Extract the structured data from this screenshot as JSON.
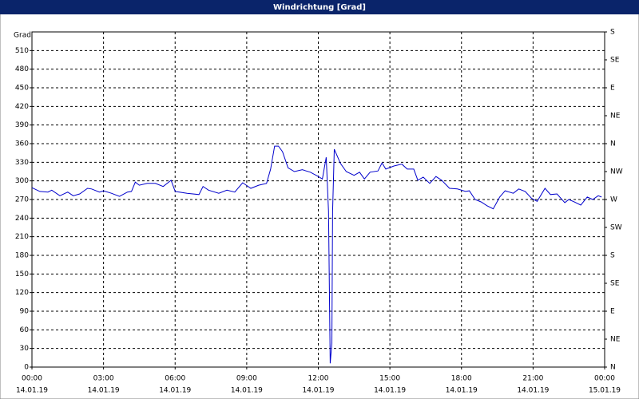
{
  "chart_data": {
    "type": "line",
    "title": "Windrichtung [Grad]",
    "y_label": "Grad",
    "x": [
      0,
      0.33,
      0.67,
      0.83,
      1.17,
      1.5,
      1.73,
      2,
      2.33,
      2.5,
      2.83,
      3,
      3.33,
      3.67,
      4,
      4.17,
      4.33,
      4.5,
      4.83,
      5.17,
      5.5,
      5.83,
      6,
      6.5,
      7,
      7.17,
      7.4,
      7.83,
      8.17,
      8.5,
      8.83,
      9.17,
      9.5,
      9.83,
      10,
      10.17,
      10.33,
      10.5,
      10.73,
      11,
      11.33,
      11.67,
      12,
      12.17,
      12.33,
      12.43,
      12.5,
      12.57,
      12.6,
      12.67,
      12.93,
      13.17,
      13.5,
      13.73,
      13.93,
      14.17,
      14.5,
      14.67,
      14.83,
      15.17,
      15.5,
      15.73,
      16,
      16.17,
      16.4,
      16.67,
      16.93,
      17.17,
      17.5,
      17.83,
      18.17,
      18.33,
      18.57,
      18.83,
      19.07,
      19.33,
      19.6,
      19.83,
      20.17,
      20.4,
      20.67,
      20.93,
      21.17,
      21.5,
      21.73,
      22,
      22.33,
      22.5,
      22.73,
      23,
      23.27,
      23.5,
      23.73,
      23.87
    ],
    "series": [
      {
        "name": "Windrichtung",
        "color": "#0000cc",
        "values": [
          289,
          283,
          282,
          285,
          276,
          282,
          276,
          279,
          288,
          287,
          282,
          284,
          280,
          275,
          282,
          283,
          298,
          293,
          296,
          296,
          291,
          301,
          283,
          280,
          278,
          291,
          285,
          280,
          285,
          282,
          297,
          288,
          293,
          296,
          319,
          356,
          356,
          347,
          321,
          315,
          318,
          314,
          307,
          303,
          338,
          251,
          6,
          39,
          251,
          351,
          328,
          315,
          309,
          314,
          303,
          314,
          316,
          329,
          319,
          324,
          327,
          319,
          319,
          301,
          306,
          296,
          307,
          301,
          288,
          287,
          283,
          284,
          270,
          266,
          260,
          255,
          274,
          284,
          280,
          287,
          283,
          272,
          267,
          288,
          278,
          279,
          265,
          270,
          266,
          261,
          274,
          270,
          276,
          274
        ]
      }
    ],
    "xlim": [
      0,
      24
    ],
    "xticks": [
      {
        "value": 0,
        "label": "00:00"
      },
      {
        "value": 3,
        "label": "03:00"
      },
      {
        "value": 6,
        "label": "06:00"
      },
      {
        "value": 9,
        "label": "09:00"
      },
      {
        "value": 12,
        "label": "12:00"
      },
      {
        "value": 15,
        "label": "15:00"
      },
      {
        "value": 18,
        "label": "18:00"
      },
      {
        "value": 21,
        "label": "21:00"
      },
      {
        "value": 24,
        "label": "00:00"
      }
    ],
    "xtick_dates": [
      "14.01.19",
      "14.01.19",
      "14.01.19",
      "14.01.19",
      "14.01.19",
      "14.01.19",
      "14.01.19",
      "14.01.19",
      "15.01.19"
    ],
    "ylim": [
      0,
      540
    ],
    "yticks": [
      0,
      30,
      60,
      90,
      120,
      150,
      180,
      210,
      240,
      270,
      300,
      330,
      360,
      390,
      420,
      450,
      480,
      510
    ],
    "y2lim": [
      0,
      540
    ],
    "y2ticks": [
      {
        "value": 0,
        "label": "N"
      },
      {
        "value": 45,
        "label": "NE"
      },
      {
        "value": 90,
        "label": "E"
      },
      {
        "value": 135,
        "label": "SE"
      },
      {
        "value": 180,
        "label": "S"
      },
      {
        "value": 225,
        "label": "SW"
      },
      {
        "value": 270,
        "label": "W"
      },
      {
        "value": 315,
        "label": "NW"
      },
      {
        "value": 360,
        "label": "N"
      },
      {
        "value": 405,
        "label": "NE"
      },
      {
        "value": 450,
        "label": "E"
      },
      {
        "value": 495,
        "label": "SE"
      },
      {
        "value": 540,
        "label": "S"
      }
    ],
    "grid": true
  }
}
